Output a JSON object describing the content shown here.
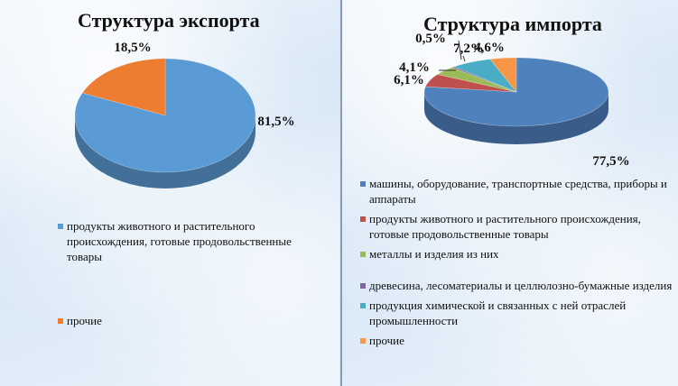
{
  "chart_data": [
    {
      "type": "pie",
      "title": "Структура экспорта",
      "categories": [
        "продукты животного и растительного происхождения, готовые продовольственные товары",
        "прочие"
      ],
      "values": [
        81.5,
        18.5
      ],
      "value_labels": [
        "81,5%",
        "18,5%"
      ],
      "colors": [
        "#5b9bd5",
        "#ed7d31"
      ],
      "legend_position": "bottom",
      "style": "3d-pie"
    },
    {
      "type": "pie",
      "title": "Структура импорта",
      "categories": [
        "машины, оборудование, транспортные средства, приборы и аппараты",
        "продукты животного и растительного происхождения, готовые продовольственные товары",
        "металлы и изделия из них",
        "древесина, лесоматериалы и целлюлозно-бумажные изделия",
        "продукция химической и связанных с ней отраслей промышленности",
        "прочие"
      ],
      "values": [
        77.5,
        6.1,
        4.1,
        0.5,
        7.2,
        4.6
      ],
      "value_labels": [
        "77,5%",
        "6,1%",
        "4,1%",
        "0,5%",
        "7,2%",
        "4,6%"
      ],
      "colors": [
        "#4f81bd",
        "#c0504d",
        "#9bbb59",
        "#8064a2",
        "#4bacc6",
        "#f79646"
      ],
      "legend_position": "bottom",
      "style": "3d-pie"
    }
  ]
}
